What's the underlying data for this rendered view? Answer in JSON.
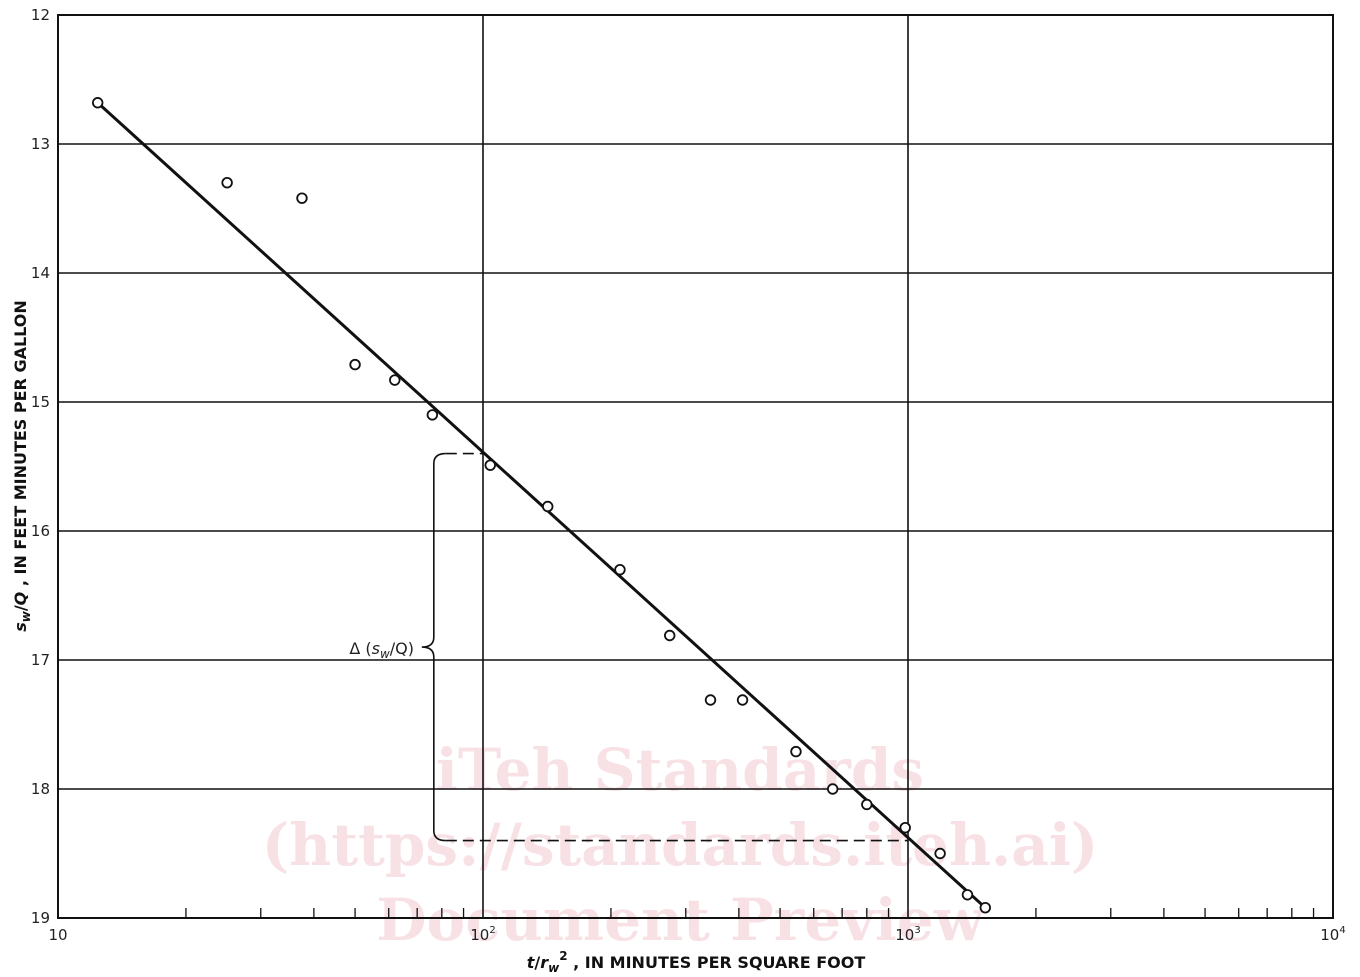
{
  "chart_data": {
    "type": "scatter",
    "x_scale": "log",
    "y_inverted": true,
    "xlim": [
      10,
      10000
    ],
    "ylim": [
      12,
      19
    ],
    "x_ticks": [
      {
        "value": 10,
        "base": "10",
        "exp": ""
      },
      {
        "value": 100,
        "base": "10",
        "exp": "2"
      },
      {
        "value": 1000,
        "base": "10",
        "exp": "3"
      },
      {
        "value": 10000,
        "base": "10",
        "exp": "4"
      }
    ],
    "y_ticks": [
      "12",
      "13",
      "14",
      "15",
      "16",
      "17",
      "18",
      "19"
    ],
    "xlabel": {
      "t": "t",
      "slash": "/",
      "r": "r",
      "sub": "w",
      "sup": "2",
      "rest": " , IN MINUTES PER SQUARE FOOT"
    },
    "ylabel": {
      "s": "s",
      "sub": "w",
      "slash": "/",
      "q": "Q",
      "rest": " , IN FEET MINUTES PER GALLON"
    },
    "grid": {
      "major": true,
      "minor_x_ticks": true
    },
    "points": [
      {
        "x": 12.4,
        "y": 12.68
      },
      {
        "x": 25,
        "y": 13.3
      },
      {
        "x": 37.5,
        "y": 13.42
      },
      {
        "x": 50,
        "y": 14.71
      },
      {
        "x": 62,
        "y": 14.83
      },
      {
        "x": 76,
        "y": 15.1
      },
      {
        "x": 104,
        "y": 15.49
      },
      {
        "x": 142,
        "y": 15.81
      },
      {
        "x": 210,
        "y": 16.3
      },
      {
        "x": 275,
        "y": 16.81
      },
      {
        "x": 343,
        "y": 17.31
      },
      {
        "x": 408,
        "y": 17.31
      },
      {
        "x": 545,
        "y": 17.71
      },
      {
        "x": 665,
        "y": 18.0
      },
      {
        "x": 800,
        "y": 18.12
      },
      {
        "x": 985,
        "y": 18.3
      },
      {
        "x": 1190,
        "y": 18.5
      },
      {
        "x": 1380,
        "y": 18.82
      },
      {
        "x": 1520,
        "y": 18.92
      }
    ],
    "fit_line": {
      "x": [
        12.4,
        1520
      ],
      "y": [
        12.68,
        18.92
      ]
    },
    "delta_annotation": {
      "label": {
        "delta": "Δ (",
        "s": "s",
        "sub": "w",
        "rest": "/Q)"
      },
      "y_top": 15.4,
      "y_bottom": 18.4,
      "x_left": 80,
      "x_end_top": 100,
      "x_end_bottom": 1000
    }
  },
  "watermark": {
    "line1": "iTeh Standards",
    "line2": "(https://standards.iteh.ai)",
    "line3": "Document Preview"
  }
}
